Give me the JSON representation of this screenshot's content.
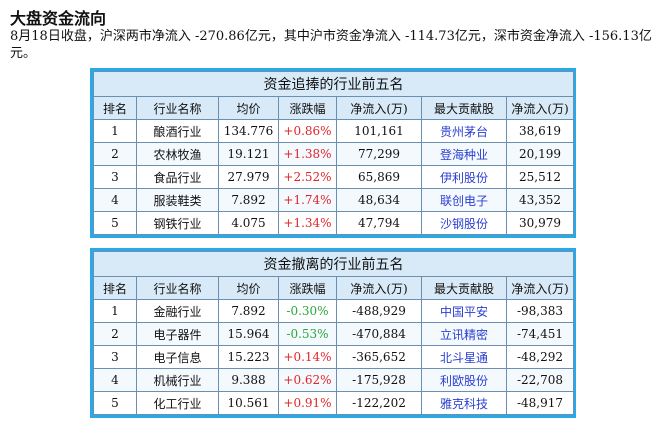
{
  "page": {
    "title": "大盘资金流向",
    "summary": "8月18日收盘，沪深两市净流入 -270.86亿元，其中沪市资金净流入 -114.73亿元，深市资金净流入 -156.13亿元。"
  },
  "inflow": {
    "title": "资金追捧的行业前五名",
    "headers": [
      "排名",
      "行业名称",
      "均价",
      "涨跌幅",
      "净流入(万)",
      "最大贡献股",
      "净流入(万)"
    ],
    "rows": [
      {
        "rank": "1",
        "industry": "酿酒行业",
        "avg_price": "134.776",
        "change": "+0.86%",
        "net_inflow": "101,161",
        "top_stock": "贵州茅台",
        "stock_inflow": "38,619"
      },
      {
        "rank": "2",
        "industry": "农林牧渔",
        "avg_price": "19.121",
        "change": "+1.38%",
        "net_inflow": "77,299",
        "top_stock": "登海种业",
        "stock_inflow": "20,199"
      },
      {
        "rank": "3",
        "industry": "食品行业",
        "avg_price": "27.979",
        "change": "+2.52%",
        "net_inflow": "65,869",
        "top_stock": "伊利股份",
        "stock_inflow": "25,512"
      },
      {
        "rank": "4",
        "industry": "服装鞋类",
        "avg_price": "7.892",
        "change": "+1.74%",
        "net_inflow": "48,634",
        "top_stock": "联创电子",
        "stock_inflow": "43,352"
      },
      {
        "rank": "5",
        "industry": "钢铁行业",
        "avg_price": "4.075",
        "change": "+1.34%",
        "net_inflow": "47,794",
        "top_stock": "沙钢股份",
        "stock_inflow": "30,979"
      }
    ]
  },
  "outflow": {
    "title": "资金撤离的行业前五名",
    "headers": [
      "排名",
      "行业名称",
      "均价",
      "涨跌幅",
      "净流入(万)",
      "最大贡献股",
      "净流入(万)"
    ],
    "rows": [
      {
        "rank": "1",
        "industry": "金融行业",
        "avg_price": "7.892",
        "change": "-0.30%",
        "net_inflow": "-488,929",
        "top_stock": "中国平安",
        "stock_inflow": "-98,383"
      },
      {
        "rank": "2",
        "industry": "电子器件",
        "avg_price": "15.964",
        "change": "-0.53%",
        "net_inflow": "-470,884",
        "top_stock": "立讯精密",
        "stock_inflow": "-74,451"
      },
      {
        "rank": "3",
        "industry": "电子信息",
        "avg_price": "15.223",
        "change": "+0.14%",
        "net_inflow": "-365,652",
        "top_stock": "北斗星通",
        "stock_inflow": "-48,292"
      },
      {
        "rank": "4",
        "industry": "机械行业",
        "avg_price": "9.388",
        "change": "+0.62%",
        "net_inflow": "-175,928",
        "top_stock": "利欧股份",
        "stock_inflow": "-22,708"
      },
      {
        "rank": "5",
        "industry": "化工行业",
        "avg_price": "10.561",
        "change": "+0.91%",
        "net_inflow": "-122,202",
        "top_stock": "雅克科技",
        "stock_inflow": "-48,917"
      }
    ]
  },
  "colors": {
    "panel_border": "#29a9e8",
    "header_bg": "#d8eaf8",
    "positive": "#e0262b",
    "negative": "#2aa83e",
    "stock_link": "#2a3fd0"
  }
}
